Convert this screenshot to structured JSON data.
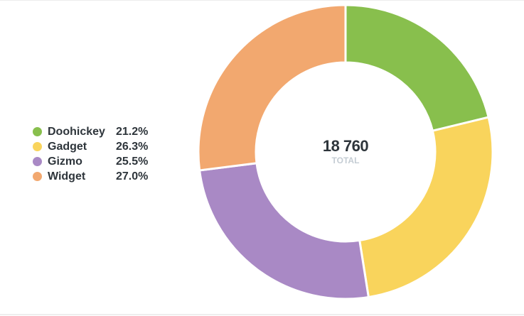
{
  "chart_data": {
    "type": "pie",
    "subtype": "donut",
    "categories": [
      "Doohickey",
      "Gadget",
      "Gizmo",
      "Widget"
    ],
    "values": [
      21.2,
      26.3,
      25.5,
      27.0
    ],
    "unit": "%",
    "colors": [
      "#88bf4d",
      "#f9d45c",
      "#a989c5",
      "#f2a86f"
    ],
    "total": "18 760",
    "total_label": "TOTAL",
    "legend_position": "left"
  },
  "legend": {
    "items": [
      {
        "label": "Doohickey",
        "pct": "21.2%",
        "color": "#88bf4d"
      },
      {
        "label": "Gadget",
        "pct": "26.3%",
        "color": "#f9d45c"
      },
      {
        "label": "Gizmo",
        "pct": "25.5%",
        "color": "#a989c5"
      },
      {
        "label": "Widget",
        "pct": "27.0%",
        "color": "#f2a86f"
      }
    ]
  },
  "center": {
    "value": "18 760",
    "label": "TOTAL"
  }
}
